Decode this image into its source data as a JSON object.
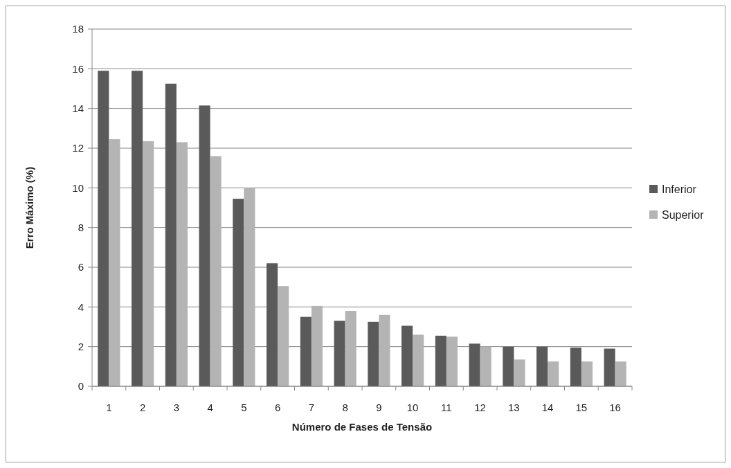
{
  "chart_data": {
    "type": "bar",
    "xlabel": "Número de Fases de Tensão",
    "ylabel": "Erro Máximo (%)",
    "categories": [
      "1",
      "2",
      "3",
      "4",
      "5",
      "6",
      "7",
      "8",
      "9",
      "10",
      "11",
      "12",
      "13",
      "14",
      "15",
      "16"
    ],
    "series": [
      {
        "name": "Inferior",
        "color": "#5a5a5a",
        "values": [
          15.9,
          15.9,
          15.25,
          14.15,
          9.45,
          6.2,
          3.5,
          3.3,
          3.25,
          3.05,
          2.55,
          2.15,
          2.0,
          2.0,
          1.95,
          1.9
        ]
      },
      {
        "name": "Superior",
        "color": "#b4b4b4",
        "values": [
          12.45,
          12.35,
          12.3,
          11.6,
          10.0,
          5.05,
          4.05,
          3.8,
          3.6,
          2.6,
          2.5,
          2.0,
          1.35,
          1.25,
          1.25,
          1.25
        ]
      }
    ],
    "ylim": [
      0,
      18
    ],
    "yticks": [
      0,
      2,
      4,
      6,
      8,
      10,
      12,
      14,
      16,
      18
    ],
    "grid": "y",
    "legend": "right"
  }
}
